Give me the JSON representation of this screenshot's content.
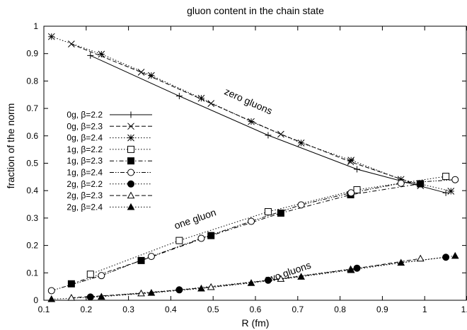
{
  "chart_data": {
    "type": "line",
    "title": "gluon content in the chain state",
    "xlabel": "R (fm)",
    "ylabel": "fraction of the norm",
    "xlim": [
      0.1,
      1.1
    ],
    "ylim": [
      0,
      1
    ],
    "xticks": [
      "0.1",
      "0.2",
      "0.3",
      "0.4",
      "0.5",
      "0.6",
      "0.7",
      "0.8",
      "0.9",
      "1",
      "1.1"
    ],
    "yticks": [
      "0",
      "0.1",
      "0.2",
      "0.3",
      "0.4",
      "0.5",
      "0.6",
      "0.7",
      "0.8",
      "0.9",
      "1"
    ],
    "grid": false,
    "legend_position": "left",
    "annotations": [
      {
        "text": "zero gluons",
        "x": 0.58,
        "y": 0.715,
        "rotate": true
      },
      {
        "text": "one gluon",
        "x": 0.46,
        "y": 0.285,
        "rotate": true
      },
      {
        "text": "two gluons",
        "x": 0.68,
        "y": 0.09,
        "rotate": true
      }
    ],
    "series": [
      {
        "name": "0g, β=2.2",
        "marker": "plus",
        "dash": "solid",
        "x": [
          0.21,
          0.42,
          0.63,
          0.84,
          1.05
        ],
        "y": [
          0.893,
          0.745,
          0.602,
          0.478,
          0.392
        ]
      },
      {
        "name": "0g, β=2.3",
        "marker": "cross",
        "dash": "dashed",
        "x": [
          0.165,
          0.33,
          0.495,
          0.66,
          0.825,
          0.99
        ],
        "y": [
          0.935,
          0.832,
          0.718,
          0.606,
          0.505,
          0.418
        ]
      },
      {
        "name": "0g, β=2.4",
        "marker": "star",
        "dash": "dotted",
        "x": [
          0.118,
          0.236,
          0.354,
          0.472,
          0.59,
          0.708,
          0.826,
          0.944,
          1.062
        ],
        "y": [
          0.962,
          0.898,
          0.82,
          0.737,
          0.652,
          0.574,
          0.511,
          0.441,
          0.398
        ]
      },
      {
        "name": "1g, β=2.2",
        "marker": "open-square",
        "dash": "dotted",
        "x": [
          0.21,
          0.42,
          0.63,
          0.84,
          1.05
        ],
        "y": [
          0.095,
          0.218,
          0.323,
          0.403,
          0.452
        ]
      },
      {
        "name": "1g, β=2.3",
        "marker": "filled-square",
        "dash": "dashdot",
        "x": [
          0.165,
          0.33,
          0.495,
          0.66,
          0.825,
          0.99
        ],
        "y": [
          0.06,
          0.145,
          0.236,
          0.318,
          0.385,
          0.425
        ]
      },
      {
        "name": "1g, β=2.4",
        "marker": "open-circle",
        "dash": "dashdotdot",
        "x": [
          0.118,
          0.236,
          0.354,
          0.472,
          0.59,
          0.708,
          0.826,
          0.944,
          1.072
        ],
        "y": [
          0.035,
          0.09,
          0.16,
          0.226,
          0.288,
          0.348,
          0.392,
          0.427,
          0.44
        ]
      },
      {
        "name": "2g, β=2.2",
        "marker": "filled-circle",
        "dash": "dotted",
        "x": [
          0.21,
          0.42,
          0.63,
          0.84,
          1.05
        ],
        "y": [
          0.012,
          0.038,
          0.073,
          0.117,
          0.157
        ]
      },
      {
        "name": "2g, β=2.3",
        "marker": "open-triangle",
        "dash": "dashed",
        "x": [
          0.165,
          0.33,
          0.495,
          0.66,
          0.825,
          0.99
        ],
        "y": [
          0.009,
          0.025,
          0.048,
          0.078,
          0.113,
          0.152
        ]
      },
      {
        "name": "2g, β=2.4",
        "marker": "filled-triangle",
        "dash": "dotted",
        "x": [
          0.118,
          0.236,
          0.354,
          0.472,
          0.59,
          0.708,
          0.826,
          0.944,
          1.072
        ],
        "y": [
          0.004,
          0.013,
          0.027,
          0.043,
          0.063,
          0.086,
          0.11,
          0.137,
          0.162
        ]
      }
    ]
  }
}
